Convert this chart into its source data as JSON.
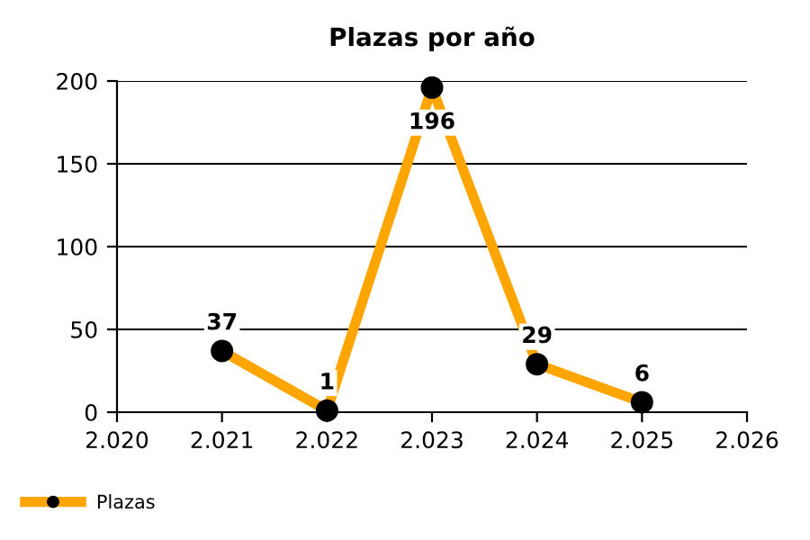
{
  "chart_data": {
    "type": "line",
    "title": "Plazas por año",
    "x": [
      2021,
      2022,
      2023,
      2024,
      2025
    ],
    "series": [
      {
        "name": "Plazas",
        "color": "#ffa500",
        "values": [
          37,
          1,
          196,
          29,
          6
        ]
      }
    ],
    "xlim": [
      2020,
      2026
    ],
    "xticks": [
      {
        "value": 2020,
        "label": "2.020"
      },
      {
        "value": 2021,
        "label": "2.021"
      },
      {
        "value": 2022,
        "label": "2.022"
      },
      {
        "value": 2023,
        "label": "2.023"
      },
      {
        "value": 2024,
        "label": "2.024"
      },
      {
        "value": 2025,
        "label": "2.025"
      },
      {
        "value": 2026,
        "label": "2.026"
      }
    ],
    "ylim": [
      0,
      200
    ],
    "yticks": [
      0,
      50,
      100,
      150,
      200
    ],
    "grid": "y",
    "legend": "bottom left",
    "marker": "circle",
    "line_style": "solid",
    "data_labels": true
  }
}
